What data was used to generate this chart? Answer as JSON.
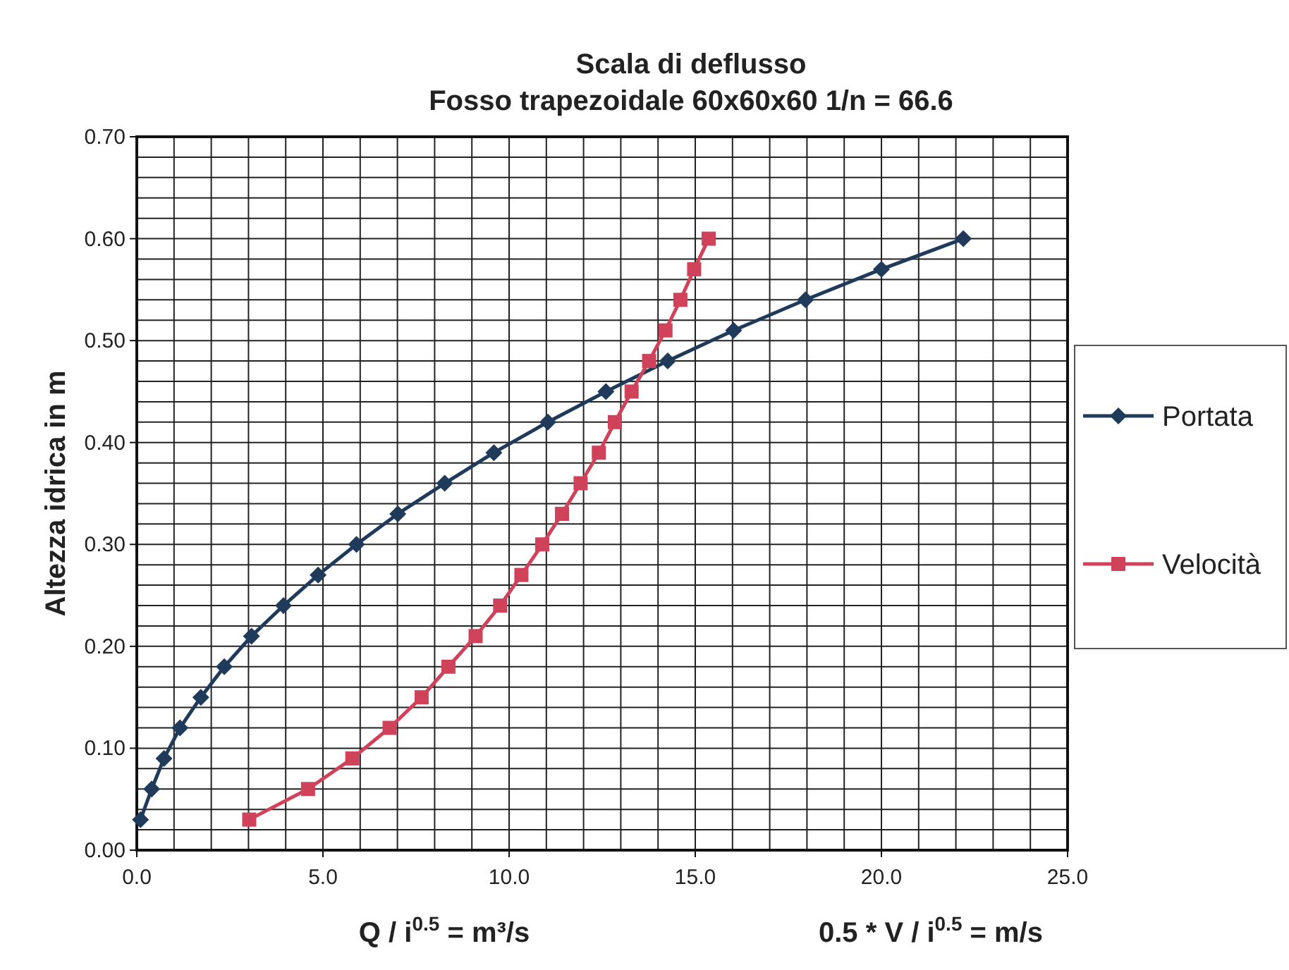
{
  "chart_data": {
    "type": "line",
    "title": "Scala di deflusso",
    "subtitle": "Fosso trapezoidale 60x60x60   1/n = 66.6",
    "xlabel": "Q / i$^{0.5}$  = m³/s",
    "ylabel": "Altezza idrica in m",
    "annotations": [
      "0.5 * V / i$^{0.5}$ = m/s"
    ],
    "xlim": [
      0,
      25
    ],
    "xticks": [
      {
        "value": 0,
        "label": "0.0"
      },
      {
        "value": 5,
        "label": "5.0"
      },
      {
        "value": 10,
        "label": "10.0"
      },
      {
        "value": 15,
        "label": "15.0"
      },
      {
        "value": 20,
        "label": "20.0"
      },
      {
        "value": 25,
        "label": "25.0"
      }
    ],
    "ylim": [
      0,
      0.7
    ],
    "yticks": [
      {
        "value": 0,
        "label": "0.00"
      },
      {
        "value": 0.1,
        "label": "0.10"
      },
      {
        "value": 0.2,
        "label": "0.20"
      },
      {
        "value": 0.3,
        "label": "0.30"
      },
      {
        "value": 0.4,
        "label": "0.40"
      },
      {
        "value": 0.5,
        "label": "0.50"
      },
      {
        "value": 0.6,
        "label": "0.60"
      },
      {
        "value": 0.7,
        "label": "0.70"
      }
    ],
    "grid": true,
    "legend": "right",
    "series": [
      {
        "name": "Portata",
        "color": "#1f3a5a",
        "marker": "diamond",
        "x": [
          0.1,
          0.4,
          0.73,
          1.16,
          1.72,
          2.35,
          3.08,
          3.94,
          4.87,
          5.9,
          7.01,
          8.27,
          9.59,
          11.04,
          12.6,
          14.26,
          16.03,
          17.96,
          20.0,
          22.2
        ],
        "values": [
          0.03,
          0.06,
          0.09,
          0.12,
          0.15,
          0.18,
          0.21,
          0.24,
          0.27,
          0.3,
          0.33,
          0.36,
          0.39,
          0.42,
          0.45,
          0.48,
          0.51,
          0.54,
          0.57,
          0.6
        ]
      },
      {
        "name": "Velocità",
        "color": "#d0425a",
        "marker": "square",
        "x": [
          3.02,
          4.6,
          5.79,
          6.79,
          7.65,
          8.37,
          9.1,
          9.76,
          10.33,
          10.89,
          11.42,
          11.92,
          12.41,
          12.84,
          13.29,
          13.76,
          14.2,
          14.6,
          14.97,
          15.36
        ],
        "values": [
          0.03,
          0.06,
          0.09,
          0.12,
          0.15,
          0.18,
          0.21,
          0.24,
          0.27,
          0.3,
          0.33,
          0.36,
          0.39,
          0.42,
          0.45,
          0.48,
          0.51,
          0.54,
          0.57,
          0.6
        ]
      }
    ]
  }
}
